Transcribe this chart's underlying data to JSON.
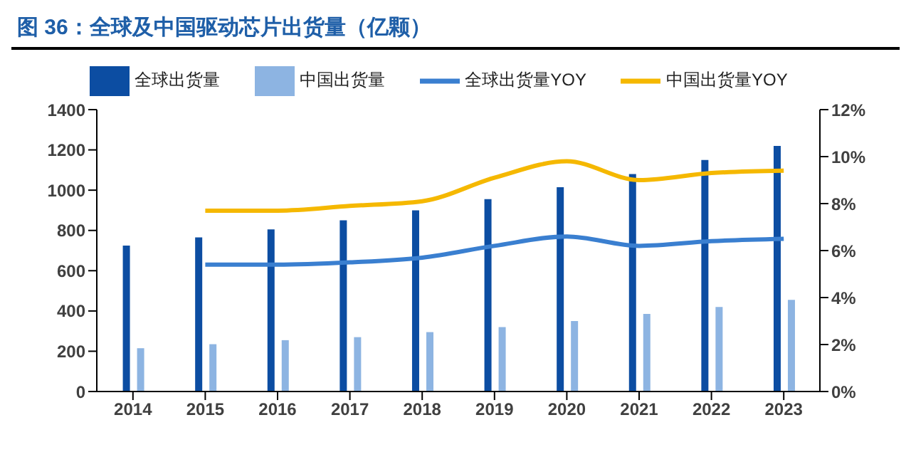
{
  "chart_data": {
    "type": "bar",
    "title": "图 36：全球及中国驱动芯片出货量（亿颗）",
    "categories": [
      "2014",
      "2015",
      "2016",
      "2017",
      "2018",
      "2019",
      "2020",
      "2021",
      "2022",
      "2023"
    ],
    "series": [
      {
        "name": "全球出货量",
        "color": "#0c4da2",
        "values": [
          725,
          765,
          805,
          850,
          900,
          955,
          1015,
          1080,
          1150,
          1220
        ]
      },
      {
        "name": "中国出货量",
        "color": "#8db4e2",
        "values": [
          215,
          235,
          255,
          270,
          295,
          320,
          350,
          385,
          420,
          455
        ]
      },
      {
        "name": "全球出货量YOY",
        "type": "line",
        "axis": "y2",
        "color": "#3a7fd0",
        "values": [
          null,
          5.4,
          5.4,
          5.5,
          5.7,
          6.2,
          6.6,
          6.2,
          6.4,
          6.5
        ]
      },
      {
        "name": "中国出货量YOY",
        "type": "line",
        "axis": "y2",
        "color": "#f5b800",
        "values": [
          null,
          7.7,
          7.7,
          7.9,
          8.1,
          9.1,
          9.8,
          9.0,
          9.3,
          9.4
        ]
      }
    ],
    "ylim": [
      0,
      1400
    ],
    "yticks": [
      0,
      200,
      400,
      600,
      800,
      1000,
      1200,
      1400
    ],
    "y2lim": [
      0,
      12
    ],
    "y2ticks": [
      {
        "value": 0,
        "label": "0%"
      },
      {
        "value": 2,
        "label": "2%"
      },
      {
        "value": 4,
        "label": "4%"
      },
      {
        "value": 6,
        "label": "6%"
      },
      {
        "value": 8,
        "label": "8%"
      },
      {
        "value": 10,
        "label": "10%"
      },
      {
        "value": 12,
        "label": "12%"
      }
    ],
    "grid": false,
    "legend": "top",
    "marker": "none"
  }
}
